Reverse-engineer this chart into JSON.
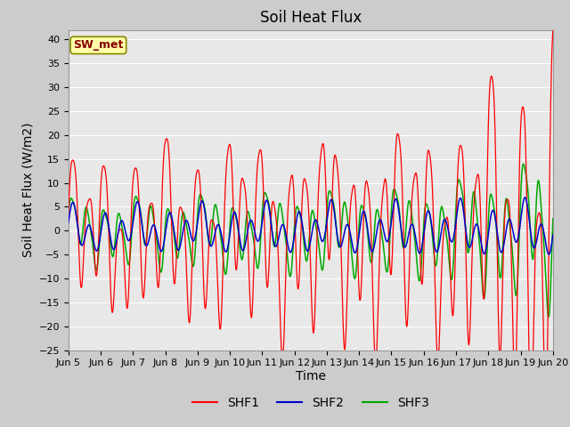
{
  "title": "Soil Heat Flux",
  "xlabel": "Time",
  "ylabel": "Soil Heat Flux (W/m2)",
  "ylim": [
    -25,
    42
  ],
  "yticks": [
    -25,
    -20,
    -15,
    -10,
    -5,
    0,
    5,
    10,
    15,
    20,
    25,
    30,
    35,
    40
  ],
  "xtick_labels": [
    "Jun 5",
    "Jun 6",
    "Jun 7",
    "Jun 8",
    "Jun 9",
    "Jun 10",
    "Jun 11",
    "Jun 12",
    "Jun 13",
    "Jun 14",
    "Jun 15",
    "Jun 16",
    "Jun 17",
    "Jun 18",
    "Jun 19",
    "Jun 20"
  ],
  "annotation_text": "SW_met",
  "annotation_bg": "#ffffaa",
  "annotation_border": "#888800",
  "annotation_fg": "#880000",
  "line_colors": [
    "#ff0000",
    "#0000cc",
    "#00aa00"
  ],
  "line_labels": [
    "SHF1",
    "SHF2",
    "SHF3"
  ],
  "bg_color": "#e0e0e0",
  "plot_bg": "#e8e8e8",
  "grid_color": "#ffffff",
  "title_fontsize": 12,
  "axis_label_fontsize": 10,
  "tick_fontsize": 8
}
